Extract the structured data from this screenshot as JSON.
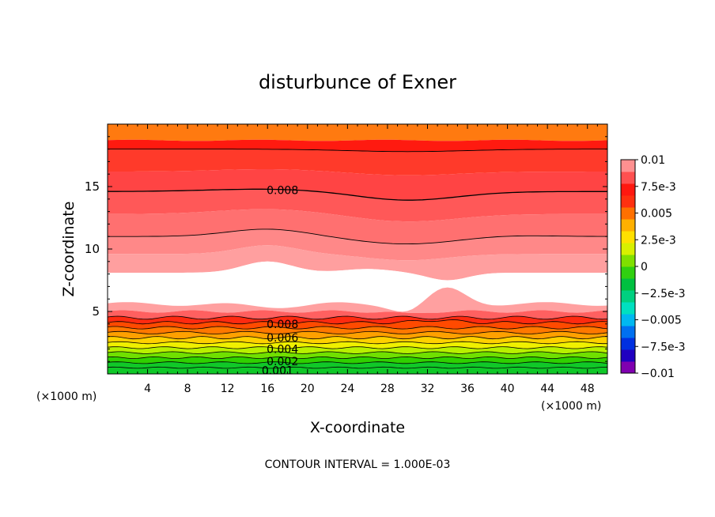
{
  "chart_data": {
    "type": "heatmap",
    "title": "disturbunce of Exner",
    "xlabel": "X-coordinate",
    "ylabel": "Z-coordinate",
    "x_unit_label_left": "(×1000 m)",
    "x_unit_label_right": "(×1000 m)",
    "xlim": [
      0,
      50
    ],
    "ylim": [
      0,
      20
    ],
    "x_ticks": [
      "4",
      "8",
      "12",
      "16",
      "20",
      "24",
      "28",
      "32",
      "36",
      "40",
      "44",
      "48"
    ],
    "y_ticks": [
      "5",
      "10",
      "15"
    ],
    "contour_interval_text": "CONTOUR INTERVAL = 1.000E-03",
    "contour_labels": [
      {
        "text": "0.008",
        "x": 17.5,
        "y": 14.7
      },
      {
        "text": "0.008",
        "x": 17.5,
        "y": 4.0
      },
      {
        "text": "0.006",
        "x": 17.5,
        "y": 2.9
      },
      {
        "text": "0.004",
        "x": 17.5,
        "y": 2.0
      },
      {
        "text": "0.002",
        "x": 17.5,
        "y": 1.0
      },
      {
        "text": "0.001",
        "x": 17.0,
        "y": 0.3
      }
    ],
    "colorbar": {
      "range": [
        -0.01,
        0.01
      ],
      "tick_labels": [
        "0.01",
        "7.5e-3",
        "0.005",
        "2.5e-3",
        "0",
        "−2.5e-3",
        "−0.005",
        "−7.5e-3",
        "−0.01"
      ],
      "colors": [
        "#8000b0",
        "#2000c0",
        "#0030e0",
        "#0070f0",
        "#00b8f0",
        "#00e0c0",
        "#00d080",
        "#00c040",
        "#30d010",
        "#80e000",
        "#d8f000",
        "#ffe000",
        "#ffb000",
        "#ff7000",
        "#ff3010",
        "#ff1810",
        "#ff5050",
        "#ff9090"
      ]
    },
    "bands": [
      {
        "level": "white",
        "color": "#ffffff"
      },
      {
        "level": 0.0095,
        "color": "#ff9a9a"
      },
      {
        "level": 0.009,
        "color": "#ff7a7a"
      },
      {
        "level": 0.0085,
        "color": "#ff5555"
      },
      {
        "level": 0.008,
        "color": "#ff3a2a"
      },
      {
        "level": 0.0075,
        "color": "#ff1a10"
      },
      {
        "level": 0.007,
        "color": "#ff2a00"
      },
      {
        "level": 0.0065,
        "color": "#ff5a00"
      },
      {
        "level": 0.006,
        "color": "#ff8a00"
      },
      {
        "level": 0.005,
        "color": "#ffb400"
      },
      {
        "level": 0.0045,
        "color": "#ffe000"
      },
      {
        "level": 0.004,
        "color": "#f0f000"
      },
      {
        "level": 0.003,
        "color": "#c0f000"
      },
      {
        "level": 0.0025,
        "color": "#80e000"
      },
      {
        "level": 0.002,
        "color": "#40d000"
      },
      {
        "level": 0.001,
        "color": "#20c020"
      },
      {
        "level": 0.0,
        "color": "#00cc30"
      }
    ]
  }
}
